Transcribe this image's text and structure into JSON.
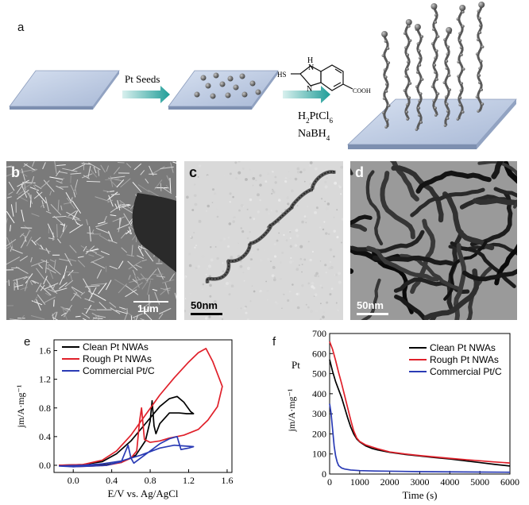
{
  "panel_a": {
    "letter": "a",
    "step1_label": "Pt Seeds",
    "molecule_labels": {
      "nh": "H",
      "n_top": "N",
      "n_bottom": "N",
      "hs": "HS",
      "cooh": "COOH"
    },
    "reagent1": "H2PtCl6",
    "reagent2": "NaBH4"
  },
  "panel_b": {
    "letter": "b",
    "scale_bar": "1μm"
  },
  "panel_c": {
    "letter": "c",
    "scale_bar": "50nm"
  },
  "panel_d": {
    "letter": "d",
    "scale_bar": "50nm"
  },
  "colors": {
    "clean": "#000000",
    "rough": "#e0202a",
    "commercial": "#2a3bb5"
  },
  "chart_data": [
    {
      "panel": "e",
      "type": "line",
      "xlabel": "E/V vs. Ag/AgCl",
      "ylabel": "jm/A·mg⁻¹",
      "xlim": [
        -0.2,
        1.65
      ],
      "ylim": [
        -0.1,
        1.75
      ],
      "xticks": [
        0.0,
        0.4,
        0.8,
        1.2,
        1.6
      ],
      "xtick_labels": [
        "0.0",
        "0.4",
        "0.8",
        "1.2",
        "1.6"
      ],
      "yticks": [
        0.0,
        0.4,
        0.8,
        1.2,
        1.6
      ],
      "ytick_labels": [
        "0.0",
        "0.4",
        "0.8",
        "1.2",
        "1.6"
      ],
      "legend_position": "top-left",
      "series": [
        {
          "name": "Clean Pt NWAs",
          "color": "#000000",
          "x": [
            -0.15,
            0.1,
            0.3,
            0.45,
            0.6,
            0.75,
            0.9,
            1.0,
            1.08,
            1.15,
            1.22,
            1.25,
            1.18,
            1.1,
            1.0,
            0.9,
            0.86,
            0.84,
            0.82,
            0.8,
            0.75,
            0.65,
            0.5,
            0.35,
            0.2,
            0.0,
            -0.15
          ],
          "y": [
            0.0,
            0.01,
            0.05,
            0.16,
            0.34,
            0.58,
            0.82,
            0.93,
            0.96,
            0.88,
            0.75,
            0.72,
            0.72,
            0.73,
            0.73,
            0.58,
            0.44,
            0.55,
            0.9,
            0.62,
            0.34,
            0.14,
            0.04,
            0.01,
            0.0,
            -0.01,
            0.0
          ]
        },
        {
          "name": "Rough Pt NWAs",
          "color": "#e0202a",
          "x": [
            -0.15,
            0.1,
            0.3,
            0.45,
            0.6,
            0.75,
            0.9,
            1.05,
            1.2,
            1.3,
            1.38,
            1.45,
            1.55,
            1.5,
            1.4,
            1.3,
            1.15,
            1.0,
            0.9,
            0.8,
            0.74,
            0.71,
            0.69,
            0.66,
            0.6,
            0.5,
            0.35,
            0.2,
            0.0,
            -0.15
          ],
          "y": [
            0.0,
            0.01,
            0.07,
            0.2,
            0.42,
            0.7,
            0.98,
            1.22,
            1.44,
            1.57,
            1.63,
            1.45,
            1.1,
            0.82,
            0.63,
            0.5,
            0.42,
            0.38,
            0.34,
            0.32,
            0.36,
            0.8,
            0.62,
            0.2,
            0.1,
            0.04,
            0.0,
            -0.01,
            -0.02,
            0.0
          ]
        },
        {
          "name": "Commercial Pt/C",
          "color": "#2a3bb5",
          "x": [
            -0.15,
            0.1,
            0.3,
            0.5,
            0.7,
            0.9,
            1.05,
            1.15,
            1.25,
            1.2,
            1.12,
            1.08,
            1.0,
            0.9,
            0.8,
            0.7,
            0.63,
            0.6,
            0.57,
            0.5,
            0.35,
            0.2,
            0.0,
            -0.15
          ],
          "y": [
            -0.01,
            0.0,
            0.02,
            0.06,
            0.14,
            0.24,
            0.28,
            0.27,
            0.26,
            0.24,
            0.22,
            0.4,
            0.37,
            0.3,
            0.2,
            0.1,
            0.03,
            0.1,
            0.28,
            0.05,
            0.0,
            -0.01,
            -0.02,
            -0.01
          ]
        }
      ]
    },
    {
      "panel": "f",
      "type": "line",
      "xlabel": "Time (s)",
      "ylabel": "jm/A·mg⁻¹",
      "ylabel_top": "Pt",
      "xlim": [
        0,
        6000
      ],
      "ylim": [
        0,
        700
      ],
      "xticks": [
        0,
        1000,
        2000,
        3000,
        4000,
        5000,
        6000
      ],
      "xtick_labels": [
        "0",
        "1000",
        "2000",
        "3000",
        "4000",
        "5000",
        "6000"
      ],
      "yticks": [
        0,
        100,
        200,
        300,
        400,
        500,
        600,
        700
      ],
      "ytick_labels": [
        "0",
        "100",
        "200",
        "300",
        "400",
        "500",
        "600",
        "700"
      ],
      "legend_position": "top-right",
      "series": [
        {
          "name": "Clean Pt NWAs",
          "color": "#000000",
          "x": [
            0,
            100,
            200,
            300,
            400,
            500,
            600,
            700,
            800,
            900,
            1000,
            1200,
            1400,
            1600,
            1800,
            2000,
            2500,
            3000,
            3500,
            4000,
            4500,
            5000,
            5500,
            6000
          ],
          "y": [
            570,
            510,
            460,
            420,
            380,
            330,
            280,
            235,
            200,
            175,
            160,
            140,
            128,
            120,
            114,
            108,
            98,
            90,
            82,
            75,
            66,
            57,
            48,
            40
          ]
        },
        {
          "name": "Rough Pt NWAs",
          "color": "#e0202a",
          "x": [
            0,
            100,
            200,
            300,
            400,
            500,
            600,
            700,
            800,
            900,
            1000,
            1200,
            1400,
            1600,
            1800,
            2000,
            2500,
            3000,
            3500,
            4000,
            4500,
            5000,
            5500,
            6000
          ],
          "y": [
            660,
            620,
            565,
            505,
            450,
            390,
            330,
            270,
            215,
            180,
            162,
            145,
            135,
            126,
            118,
            110,
            100,
            92,
            85,
            78,
            72,
            66,
            60,
            55
          ]
        },
        {
          "name": "Commercial Pt/C",
          "color": "#2a3bb5",
          "x": [
            0,
            50,
            100,
            150,
            200,
            250,
            300,
            400,
            500,
            700,
            1000,
            1500,
            2000,
            3000,
            4000,
            5000,
            6000
          ],
          "y": [
            350,
            300,
            220,
            140,
            90,
            60,
            42,
            30,
            25,
            20,
            17,
            15,
            14,
            12,
            11,
            10,
            9
          ]
        }
      ]
    }
  ]
}
